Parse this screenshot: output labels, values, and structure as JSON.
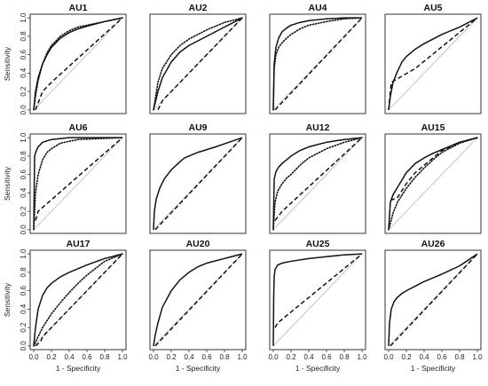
{
  "figure": {
    "xlabel": "1 - Specificity",
    "ylabel": "Sensitivity",
    "ticks": [
      "0.0",
      "0.2",
      "0.4",
      "0.6",
      "0.8",
      "1.0"
    ]
  },
  "style": {
    "curve_color": "#111111",
    "reference_color": "#b5b5b5"
  },
  "chart_data": [
    {
      "type": "line",
      "title": "AU1",
      "xlim": [
        0,
        1
      ],
      "ylim": [
        0,
        1
      ],
      "series": [
        {
          "line_style": "solid",
          "x": [
            0,
            0.02,
            0.05,
            0.1,
            0.15,
            0.2,
            0.3,
            0.4,
            0.5,
            0.6,
            0.8,
            1.0
          ],
          "y": [
            0,
            0.2,
            0.35,
            0.5,
            0.6,
            0.68,
            0.78,
            0.84,
            0.88,
            0.91,
            0.96,
            1.0
          ]
        },
        {
          "line_style": "dotted",
          "x": [
            0,
            0.02,
            0.05,
            0.1,
            0.15,
            0.2,
            0.3,
            0.4,
            0.5,
            0.6,
            0.8,
            1.0
          ],
          "y": [
            0,
            0.15,
            0.32,
            0.5,
            0.62,
            0.7,
            0.8,
            0.86,
            0.9,
            0.92,
            0.96,
            1.0
          ]
        },
        {
          "line_style": "dashed",
          "x": [
            0.02,
            0.1,
            0.2,
            1.0
          ],
          "y": [
            0,
            0.2,
            0.3,
            1.0
          ]
        }
      ]
    },
    {
      "type": "line",
      "title": "AU2",
      "xlim": [
        0,
        1
      ],
      "ylim": [
        0,
        1
      ],
      "series": [
        {
          "line_style": "solid",
          "x": [
            0,
            0.05,
            0.1,
            0.2,
            0.3,
            0.4,
            0.6,
            0.8,
            1.0
          ],
          "y": [
            0,
            0.2,
            0.35,
            0.52,
            0.63,
            0.7,
            0.8,
            0.9,
            1.0
          ]
        },
        {
          "line_style": "dotted",
          "x": [
            0,
            0.05,
            0.1,
            0.2,
            0.3,
            0.4,
            0.6,
            0.8,
            1.0
          ],
          "y": [
            0,
            0.3,
            0.45,
            0.6,
            0.7,
            0.77,
            0.87,
            0.95,
            1.0
          ]
        },
        {
          "line_style": "dashed",
          "x": [
            0.05,
            0.1,
            1.0
          ],
          "y": [
            0,
            0.1,
            1.0
          ]
        }
      ]
    },
    {
      "type": "line",
      "title": "AU4",
      "xlim": [
        0,
        1
      ],
      "ylim": [
        0,
        1
      ],
      "series": [
        {
          "line_style": "solid",
          "x": [
            0,
            0.01,
            0.03,
            0.06,
            0.1,
            0.15,
            0.2,
            0.3,
            0.4,
            0.6,
            0.8,
            1.0
          ],
          "y": [
            0,
            0.5,
            0.68,
            0.78,
            0.85,
            0.89,
            0.92,
            0.95,
            0.97,
            0.99,
            1.0,
            1.0
          ]
        },
        {
          "line_style": "dotted",
          "x": [
            0,
            0.01,
            0.03,
            0.06,
            0.1,
            0.15,
            0.2,
            0.3,
            0.4,
            0.6,
            0.8,
            1.0
          ],
          "y": [
            0,
            0.45,
            0.6,
            0.68,
            0.73,
            0.78,
            0.82,
            0.88,
            0.92,
            0.96,
            0.99,
            1.0
          ]
        },
        {
          "line_style": "dashed",
          "x": [
            0.02,
            1.0
          ],
          "y": [
            0,
            1.0
          ]
        }
      ]
    },
    {
      "type": "line",
      "title": "AU5",
      "xlim": [
        0,
        1
      ],
      "ylim": [
        0,
        1
      ],
      "series": [
        {
          "line_style": "solid",
          "x": [
            0,
            0.02,
            0.05,
            0.1,
            0.15,
            0.2,
            0.3,
            0.4,
            0.6,
            0.8,
            1.0
          ],
          "y": [
            0,
            0.15,
            0.3,
            0.42,
            0.52,
            0.58,
            0.66,
            0.72,
            0.82,
            0.9,
            1.0
          ]
        },
        {
          "line_style": "dashed",
          "x": [
            0,
            0.03,
            0.3,
            1.0
          ],
          "y": [
            0,
            0.3,
            0.45,
            1.0
          ]
        }
      ]
    },
    {
      "type": "line",
      "title": "AU6",
      "xlim": [
        0,
        1
      ],
      "ylim": [
        0,
        1
      ],
      "series": [
        {
          "line_style": "solid",
          "x": [
            0,
            0.01,
            0.03,
            0.05,
            0.1,
            0.2,
            0.4,
            1.0
          ],
          "y": [
            0,
            0.8,
            0.86,
            0.9,
            0.95,
            0.98,
            1.0,
            1.0
          ]
        },
        {
          "line_style": "dotted",
          "x": [
            0,
            0.02,
            0.05,
            0.1,
            0.15,
            0.2,
            0.3,
            0.5,
            1.0
          ],
          "y": [
            0,
            0.4,
            0.6,
            0.76,
            0.84,
            0.88,
            0.94,
            0.98,
            1.0
          ]
        },
        {
          "line_style": "dashed",
          "x": [
            0.02,
            0.05,
            1.0
          ],
          "y": [
            0.1,
            0.2,
            1.0
          ]
        }
      ]
    },
    {
      "type": "line",
      "title": "AU9",
      "xlim": [
        0,
        1
      ],
      "ylim": [
        0,
        1
      ],
      "series": [
        {
          "line_style": "solid",
          "x": [
            0,
            0.01,
            0.03,
            0.07,
            0.12,
            0.2,
            0.3,
            0.35,
            0.5,
            0.7,
            0.85,
            1.0
          ],
          "y": [
            0,
            0.2,
            0.33,
            0.45,
            0.55,
            0.65,
            0.74,
            0.78,
            0.84,
            0.9,
            0.95,
            1.0
          ]
        },
        {
          "line_style": "dashed",
          "x": [
            0.02,
            1.0
          ],
          "y": [
            0,
            1.0
          ]
        }
      ]
    },
    {
      "type": "line",
      "title": "AU12",
      "xlim": [
        0,
        1
      ],
      "ylim": [
        0,
        1
      ],
      "series": [
        {
          "line_style": "solid",
          "x": [
            0,
            0.01,
            0.03,
            0.06,
            0.1,
            0.15,
            0.2,
            0.3,
            0.4,
            0.6,
            0.8,
            1.0
          ],
          "y": [
            0,
            0.55,
            0.63,
            0.68,
            0.72,
            0.76,
            0.8,
            0.86,
            0.9,
            0.95,
            0.98,
            1.0
          ]
        },
        {
          "line_style": "dotted",
          "x": [
            0,
            0.02,
            0.05,
            0.1,
            0.15,
            0.2,
            0.3,
            0.4,
            0.6,
            0.8,
            1.0
          ],
          "y": [
            0,
            0.3,
            0.42,
            0.5,
            0.56,
            0.6,
            0.7,
            0.78,
            0.88,
            0.95,
            1.0
          ]
        },
        {
          "line_style": "dashed",
          "x": [
            0.02,
            0.1,
            1.0
          ],
          "y": [
            0.1,
            0.2,
            1.0
          ]
        }
      ]
    },
    {
      "type": "line",
      "title": "AU15",
      "xlim": [
        0,
        1
      ],
      "ylim": [
        0,
        1
      ],
      "series": [
        {
          "line_style": "solid",
          "x": [
            0,
            0.02,
            0.05,
            0.1,
            0.15,
            0.2,
            0.3,
            0.4,
            0.5,
            0.6,
            0.8,
            1.0
          ],
          "y": [
            0,
            0.3,
            0.38,
            0.46,
            0.54,
            0.62,
            0.72,
            0.78,
            0.83,
            0.87,
            0.95,
            1.0
          ]
        },
        {
          "line_style": "dotted",
          "x": [
            0,
            0.05,
            0.1,
            0.2,
            0.3,
            0.4,
            0.5,
            0.6,
            0.8,
            1.0
          ],
          "y": [
            0,
            0.18,
            0.3,
            0.45,
            0.57,
            0.67,
            0.76,
            0.84,
            0.94,
            1.0
          ]
        },
        {
          "line_style": "dashed",
          "x": [
            0.02,
            0.05,
            0.1,
            0.2,
            0.3,
            0.4,
            0.5,
            0.6,
            0.8,
            1.0
          ],
          "y": [
            0.32,
            0.33,
            0.35,
            0.5,
            0.62,
            0.7,
            0.78,
            0.86,
            0.95,
            1.0
          ]
        }
      ]
    },
    {
      "type": "line",
      "title": "AU17",
      "xlim": [
        0,
        1
      ],
      "ylim": [
        0,
        1
      ],
      "series": [
        {
          "line_style": "solid",
          "x": [
            0,
            0.02,
            0.05,
            0.1,
            0.15,
            0.2,
            0.3,
            0.4,
            0.6,
            0.8,
            1.0
          ],
          "y": [
            0,
            0.2,
            0.4,
            0.55,
            0.63,
            0.68,
            0.75,
            0.8,
            0.88,
            0.95,
            1.0
          ]
        },
        {
          "line_style": "dotted",
          "x": [
            0,
            0.05,
            0.1,
            0.2,
            0.3,
            0.4,
            0.5,
            0.6,
            0.8,
            1.0
          ],
          "y": [
            0,
            0.1,
            0.2,
            0.35,
            0.47,
            0.58,
            0.68,
            0.77,
            0.92,
            1.0
          ]
        },
        {
          "line_style": "dashed",
          "x": [
            0.02,
            0.08,
            0.1,
            1.0
          ],
          "y": [
            0,
            0.05,
            0.1,
            1.0
          ]
        }
      ]
    },
    {
      "type": "line",
      "title": "AU20",
      "xlim": [
        0,
        1
      ],
      "ylim": [
        0,
        1
      ],
      "series": [
        {
          "line_style": "solid",
          "x": [
            0,
            0.02,
            0.05,
            0.1,
            0.2,
            0.3,
            0.4,
            0.5,
            0.6,
            0.8,
            1.0
          ],
          "y": [
            0,
            0.12,
            0.25,
            0.42,
            0.6,
            0.72,
            0.8,
            0.86,
            0.9,
            0.95,
            1.0
          ]
        },
        {
          "line_style": "dashed",
          "x": [
            0.02,
            1.0
          ],
          "y": [
            0,
            1.0
          ]
        }
      ]
    },
    {
      "type": "line",
      "title": "AU25",
      "xlim": [
        0,
        1
      ],
      "ylim": [
        0,
        1
      ],
      "series": [
        {
          "line_style": "solid",
          "x": [
            0,
            0.005,
            0.01,
            0.02,
            0.05,
            0.1,
            0.2,
            0.4,
            0.6,
            0.8,
            1.0
          ],
          "y": [
            0,
            0.55,
            0.75,
            0.83,
            0.88,
            0.9,
            0.92,
            0.95,
            0.97,
            0.99,
            1.0
          ]
        },
        {
          "line_style": "dashed",
          "x": [
            0.02,
            0.05,
            1.0
          ],
          "y": [
            0.2,
            0.25,
            1.0
          ]
        }
      ]
    },
    {
      "type": "line",
      "title": "AU26",
      "xlim": [
        0,
        1
      ],
      "ylim": [
        0,
        1
      ],
      "series": [
        {
          "line_style": "solid",
          "x": [
            0,
            0.01,
            0.03,
            0.06,
            0.1,
            0.15,
            0.2,
            0.3,
            0.4,
            0.6,
            0.8,
            1.0
          ],
          "y": [
            0,
            0.25,
            0.4,
            0.48,
            0.53,
            0.57,
            0.6,
            0.65,
            0.7,
            0.78,
            0.87,
            1.0
          ]
        },
        {
          "line_style": "dashed",
          "x": [
            0.02,
            1.0
          ],
          "y": [
            0,
            1.0
          ]
        }
      ]
    }
  ]
}
